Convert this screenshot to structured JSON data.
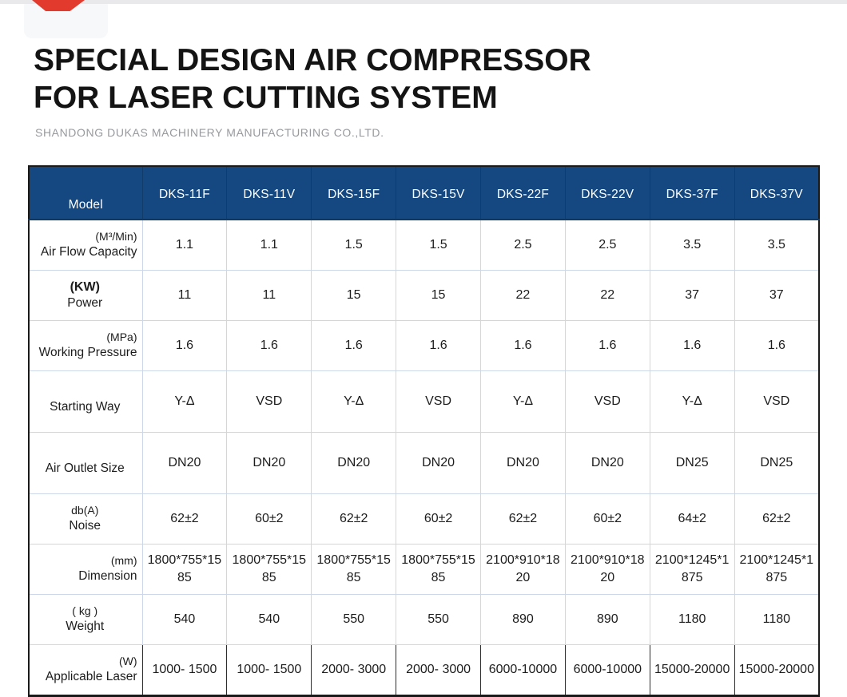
{
  "page": {
    "top_bar_color": "#e9e9ec",
    "ribbon_color": "#e23a2d"
  },
  "header": {
    "title_line1": "SPECIAL DESIGN AIR COMPRESSOR",
    "title_line2": "FOR LASER CUTTING SYSTEM",
    "subtitle": "SHANDONG DUKAS MACHINERY MANUFACTURING CO.,LTD."
  },
  "table": {
    "header_bg": "#154880",
    "corner_label": "Model",
    "columns": [
      "DKS-11F",
      "DKS-11V",
      "DKS-15F",
      "DKS-15V",
      "DKS-22F",
      "DKS-22V",
      "DKS-37F",
      "DKS-37V"
    ],
    "rows": [
      {
        "unit": "(M³/Min)",
        "name": "Air Flow Capacity",
        "values": [
          "1.1",
          "1.1",
          "1.5",
          "1.5",
          "2.5",
          "2.5",
          "3.5",
          "3.5"
        ]
      },
      {
        "unit": "(KW)",
        "name": "Power",
        "values": [
          "11",
          "11",
          "15",
          "15",
          "22",
          "22",
          "37",
          "37"
        ]
      },
      {
        "unit": "(MPa)",
        "name": "Working Pressure",
        "values": [
          "1.6",
          "1.6",
          "1.6",
          "1.6",
          "1.6",
          "1.6",
          "1.6",
          "1.6"
        ]
      },
      {
        "unit": "",
        "name": "Starting Way",
        "values": [
          "Y-Δ",
          "VSD",
          "Y-Δ",
          "VSD",
          "Y-Δ",
          "VSD",
          "Y-Δ",
          "VSD"
        ]
      },
      {
        "unit": "",
        "name": "Air Outlet Size",
        "values": [
          "DN20",
          "DN20",
          "DN20",
          "DN20",
          "DN20",
          "DN20",
          "DN25",
          "DN25"
        ]
      },
      {
        "unit": "db(A)",
        "name": "Noise",
        "values": [
          "62±2",
          "60±2",
          "62±2",
          "60±2",
          "62±2",
          "60±2",
          "64±2",
          "62±2"
        ]
      },
      {
        "unit": "(mm)",
        "name": "Dimension",
        "values": [
          "1800*755*1585",
          "1800*755*1585",
          "1800*755*1585",
          "1800*755*1585",
          "2100*910*1820",
          "2100*910*1820",
          "2100*1245*1875",
          "2100*1245*1875"
        ]
      },
      {
        "unit": "( kg )",
        "name": "Weight",
        "values": [
          "540",
          "540",
          "550",
          "550",
          "890",
          "890",
          "1180",
          "1180"
        ]
      },
      {
        "unit": "(W)",
        "name": "Applicable Laser",
        "values": [
          "1000- 1500",
          "1000- 1500",
          "2000- 3000",
          "2000- 3000",
          "6000-10000",
          "6000-10000",
          "15000-20000",
          "15000-20000"
        ]
      }
    ]
  }
}
